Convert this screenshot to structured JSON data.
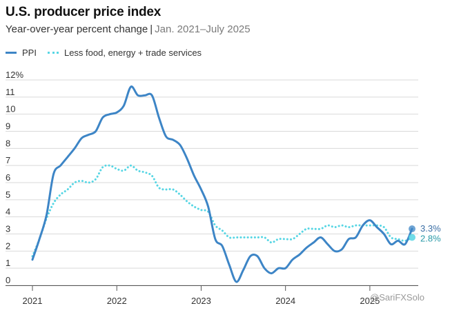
{
  "header": {
    "title": "U.S. producer price index",
    "subtitle_main": "Year-over-year percent change",
    "subtitle_sep": "|",
    "subtitle_range": "Jan. 2021–July 2025"
  },
  "watermark": "@SariFXSolo",
  "colors": {
    "ppi": "#3d85c6",
    "core": "#57d6e4",
    "grid": "#d9d9d9"
  },
  "chart_data": {
    "type": "line",
    "title": "U.S. producer price index",
    "subtitle": "Year-over-year percent change | Jan. 2021–July 2025",
    "ylim": [
      0,
      12
    ],
    "x_range": [
      2021.0,
      2025.5
    ],
    "y_ticks": [
      "0",
      "1",
      "2",
      "3",
      "4",
      "5",
      "6",
      "7",
      "8",
      "9",
      "10",
      "11",
      "12%"
    ],
    "x_ticks": [
      {
        "label": "2021",
        "x": 2021
      },
      {
        "label": "2022",
        "x": 2022
      },
      {
        "label": "2023",
        "x": 2023
      },
      {
        "label": "2024",
        "x": 2024
      },
      {
        "label": "2025",
        "x": 2025
      }
    ],
    "grid": true,
    "legend_position": "top-left",
    "series": [
      {
        "name": "PPI",
        "style": "solid",
        "end_label": "3.3%",
        "points": [
          [
            2021.0,
            1.5
          ],
          [
            2021.083,
            2.7
          ],
          [
            2021.167,
            4.1
          ],
          [
            2021.25,
            6.5
          ],
          [
            2021.333,
            7.0
          ],
          [
            2021.417,
            7.5
          ],
          [
            2021.5,
            8.0
          ],
          [
            2021.583,
            8.6
          ],
          [
            2021.667,
            8.8
          ],
          [
            2021.75,
            9.0
          ],
          [
            2021.833,
            9.8
          ],
          [
            2021.917,
            10.0
          ],
          [
            2022.0,
            10.1
          ],
          [
            2022.083,
            10.5
          ],
          [
            2022.167,
            11.6
          ],
          [
            2022.25,
            11.1
          ],
          [
            2022.333,
            11.1
          ],
          [
            2022.417,
            11.1
          ],
          [
            2022.5,
            9.8
          ],
          [
            2022.583,
            8.7
          ],
          [
            2022.667,
            8.5
          ],
          [
            2022.75,
            8.2
          ],
          [
            2022.833,
            7.4
          ],
          [
            2022.917,
            6.4
          ],
          [
            2023.0,
            5.6
          ],
          [
            2023.083,
            4.6
          ],
          [
            2023.167,
            2.7
          ],
          [
            2023.25,
            2.3
          ],
          [
            2023.333,
            1.2
          ],
          [
            2023.417,
            0.2
          ],
          [
            2023.5,
            0.9
          ],
          [
            2023.583,
            1.7
          ],
          [
            2023.667,
            1.7
          ],
          [
            2023.75,
            1.0
          ],
          [
            2023.833,
            0.7
          ],
          [
            2023.917,
            1.0
          ],
          [
            2024.0,
            1.0
          ],
          [
            2024.083,
            1.5
          ],
          [
            2024.167,
            1.8
          ],
          [
            2024.25,
            2.2
          ],
          [
            2024.333,
            2.5
          ],
          [
            2024.417,
            2.8
          ],
          [
            2024.5,
            2.4
          ],
          [
            2024.583,
            2.0
          ],
          [
            2024.667,
            2.1
          ],
          [
            2024.75,
            2.7
          ],
          [
            2024.833,
            2.8
          ],
          [
            2024.917,
            3.5
          ],
          [
            2025.0,
            3.8
          ],
          [
            2025.083,
            3.4
          ],
          [
            2025.167,
            3.0
          ],
          [
            2025.25,
            2.4
          ],
          [
            2025.333,
            2.6
          ],
          [
            2025.417,
            2.4
          ],
          [
            2025.5,
            3.3
          ]
        ]
      },
      {
        "name": "Less food, energy + trade services",
        "style": "dotted",
        "end_label": "2.8%",
        "points": [
          [
            2021.0,
            1.7
          ],
          [
            2021.083,
            2.7
          ],
          [
            2021.167,
            3.9
          ],
          [
            2021.25,
            4.8
          ],
          [
            2021.333,
            5.3
          ],
          [
            2021.417,
            5.6
          ],
          [
            2021.5,
            6.0
          ],
          [
            2021.583,
            6.1
          ],
          [
            2021.667,
            6.0
          ],
          [
            2021.75,
            6.2
          ],
          [
            2021.833,
            6.9
          ],
          [
            2021.917,
            7.0
          ],
          [
            2022.0,
            6.8
          ],
          [
            2022.083,
            6.7
          ],
          [
            2022.167,
            7.0
          ],
          [
            2022.25,
            6.7
          ],
          [
            2022.333,
            6.6
          ],
          [
            2022.417,
            6.4
          ],
          [
            2022.5,
            5.7
          ],
          [
            2022.583,
            5.6
          ],
          [
            2022.667,
            5.6
          ],
          [
            2022.75,
            5.3
          ],
          [
            2022.833,
            4.9
          ],
          [
            2022.917,
            4.6
          ],
          [
            2023.0,
            4.4
          ],
          [
            2023.083,
            4.3
          ],
          [
            2023.167,
            3.5
          ],
          [
            2023.25,
            3.2
          ],
          [
            2023.333,
            2.8
          ],
          [
            2023.417,
            2.8
          ],
          [
            2023.5,
            2.8
          ],
          [
            2023.583,
            2.8
          ],
          [
            2023.667,
            2.8
          ],
          [
            2023.75,
            2.8
          ],
          [
            2023.833,
            2.5
          ],
          [
            2023.917,
            2.7
          ],
          [
            2024.0,
            2.7
          ],
          [
            2024.083,
            2.7
          ],
          [
            2024.167,
            3.0
          ],
          [
            2024.25,
            3.3
          ],
          [
            2024.333,
            3.3
          ],
          [
            2024.417,
            3.3
          ],
          [
            2024.5,
            3.5
          ],
          [
            2024.583,
            3.4
          ],
          [
            2024.667,
            3.5
          ],
          [
            2024.75,
            3.4
          ],
          [
            2024.833,
            3.5
          ],
          [
            2024.917,
            3.5
          ],
          [
            2025.0,
            3.5
          ],
          [
            2025.083,
            3.5
          ],
          [
            2025.167,
            3.4
          ],
          [
            2025.25,
            2.8
          ],
          [
            2025.333,
            2.7
          ],
          [
            2025.417,
            2.6
          ],
          [
            2025.5,
            2.8
          ]
        ]
      }
    ]
  }
}
